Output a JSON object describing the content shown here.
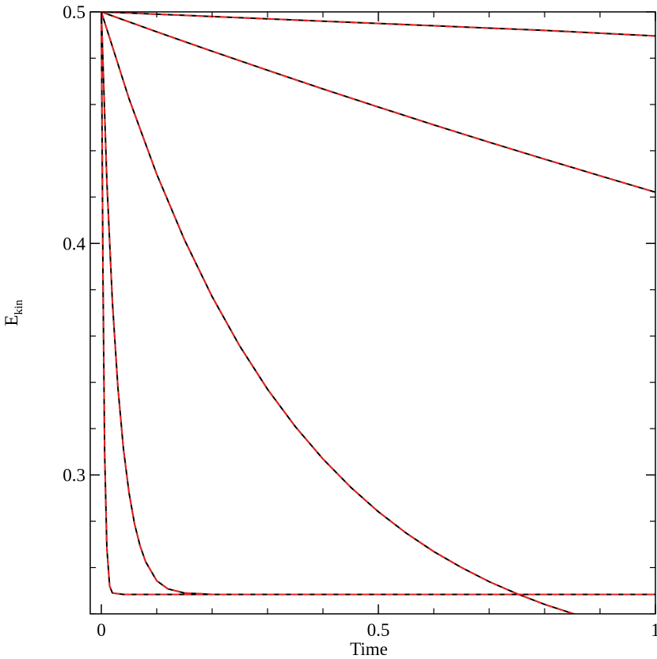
{
  "chart_data": {
    "type": "line",
    "title": "",
    "xlabel": "Time",
    "ylabel_main": "E",
    "ylabel_sub": "kin",
    "xlim": [
      -0.02,
      1.0
    ],
    "ylim": [
      0.24,
      0.5
    ],
    "x_ticks": [
      {
        "value": 0,
        "label": "0"
      },
      {
        "value": 0.5,
        "label": "0.5"
      },
      {
        "value": 1,
        "label": "1"
      }
    ],
    "y_ticks": [
      {
        "value": 0.3,
        "label": "0.3"
      },
      {
        "value": 0.4,
        "label": "0.4"
      },
      {
        "value": 0.5,
        "label": "0.5"
      }
    ],
    "grid": false,
    "line_colors": {
      "reference": "#000000",
      "comparison": "#e8231f"
    },
    "series": [
      {
        "x": [
          0,
          0.2,
          0.4,
          0.6,
          0.8,
          1.0
        ],
        "y": [
          0.5,
          0.498,
          0.496,
          0.494,
          0.492,
          0.4896
        ]
      },
      {
        "x": [
          0,
          0.1,
          0.2,
          0.3,
          0.4,
          0.5,
          0.6,
          0.7,
          0.8,
          0.9,
          1.0
        ],
        "y": [
          0.5,
          0.4914,
          0.483,
          0.4748,
          0.4667,
          0.4589,
          0.4512,
          0.4437,
          0.4364,
          0.4292,
          0.4221
        ]
      },
      {
        "x": [
          0,
          0.05,
          0.1,
          0.15,
          0.2,
          0.25,
          0.3,
          0.35,
          0.4,
          0.45,
          0.5,
          0.55,
          0.6,
          0.65,
          0.7,
          0.75,
          0.8,
          0.85,
          0.9,
          0.95,
          1.0
        ],
        "y": [
          0.5,
          0.4625,
          0.4299,
          0.4016,
          0.377,
          0.3556,
          0.337,
          0.3209,
          0.3069,
          0.2947,
          0.2841,
          0.2749,
          0.2669,
          0.26,
          0.2539,
          0.2487,
          0.2441,
          0.2402,
          0.2367,
          0.2337,
          0.2312
        ]
      },
      {
        "x": [
          0,
          0.01,
          0.02,
          0.03,
          0.04,
          0.05,
          0.06,
          0.07,
          0.08,
          0.1,
          0.12,
          0.15,
          0.2,
          0.3,
          0.5,
          0.75,
          1.0
        ],
        "y": [
          0.5,
          0.4268,
          0.3747,
          0.3376,
          0.3111,
          0.2923,
          0.2788,
          0.2693,
          0.2625,
          0.2543,
          0.2508,
          0.249,
          0.2484,
          0.2484,
          0.2484,
          0.2484,
          0.2484
        ]
      },
      {
        "x": [
          0,
          0.003,
          0.006,
          0.01,
          0.015,
          0.02,
          0.04,
          0.1,
          0.5,
          1.0
        ],
        "y": [
          0.5,
          0.3851,
          0.3094,
          0.2684,
          0.252,
          0.249,
          0.2484,
          0.2484,
          0.2484,
          0.2484
        ]
      }
    ]
  }
}
